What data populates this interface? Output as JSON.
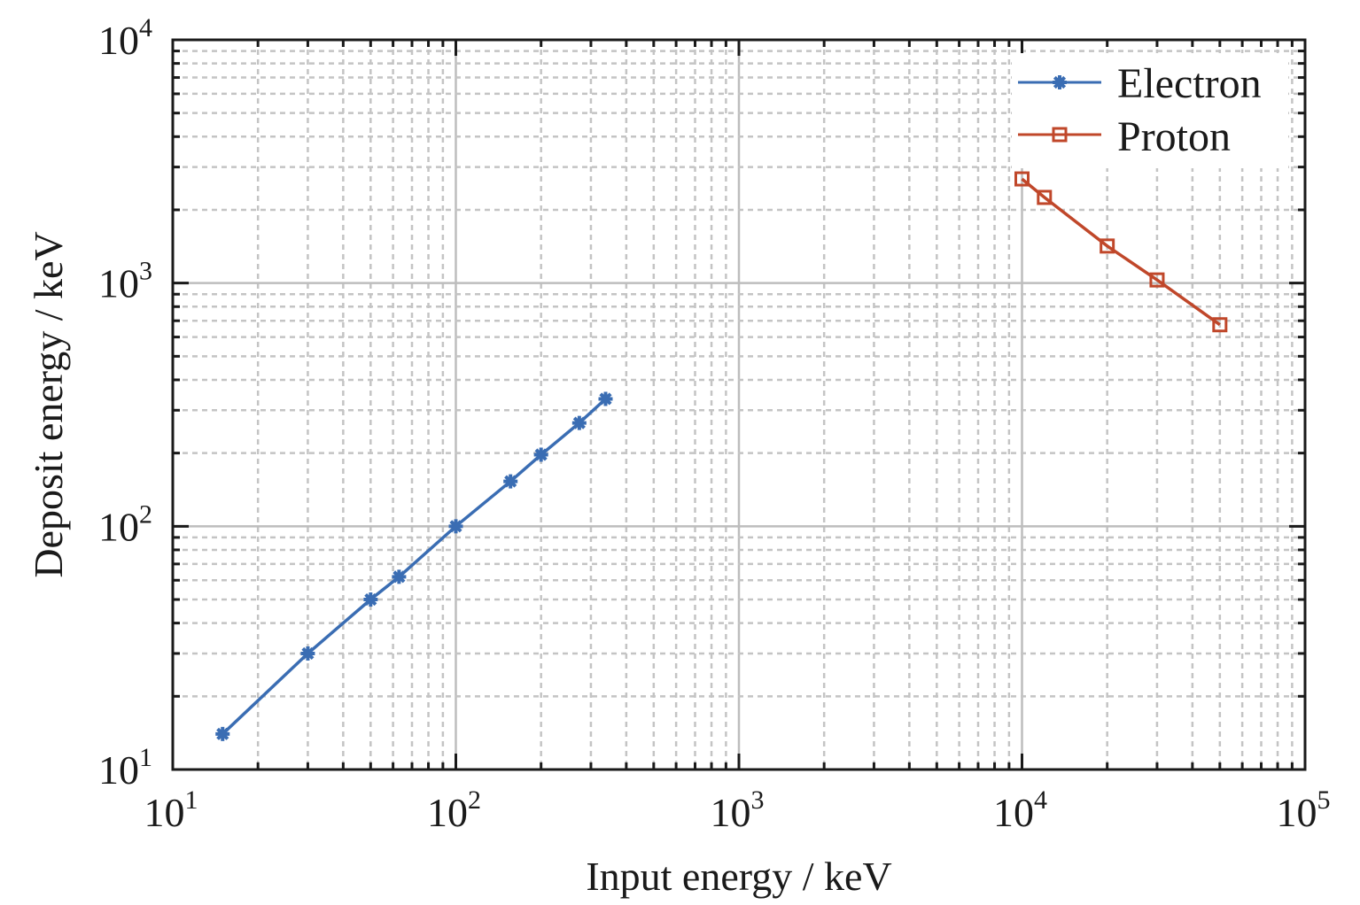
{
  "chart_data": {
    "type": "line",
    "title": "",
    "xlabel": "Input energy / keV",
    "ylabel": "Deposit energy / keV",
    "xscale": "log",
    "yscale": "log",
    "xlim": [
      10,
      100000
    ],
    "ylim": [
      10,
      10000
    ],
    "grid": true,
    "legend_position": "top-right",
    "x_ticks": [
      {
        "value": 10,
        "base": "10",
        "exp": "1"
      },
      {
        "value": 100,
        "base": "10",
        "exp": "2"
      },
      {
        "value": 1000,
        "base": "10",
        "exp": "3"
      },
      {
        "value": 10000,
        "base": "10",
        "exp": "4"
      },
      {
        "value": 100000,
        "base": "10",
        "exp": "5"
      }
    ],
    "y_ticks": [
      {
        "value": 10,
        "base": "10",
        "exp": "1"
      },
      {
        "value": 100,
        "base": "10",
        "exp": "2"
      },
      {
        "value": 1000,
        "base": "10",
        "exp": "3"
      },
      {
        "value": 10000,
        "base": "10",
        "exp": "4"
      }
    ],
    "series": [
      {
        "name": "Electron",
        "color": "#3a6db3",
        "marker": "asterisk",
        "x": [
          15,
          30,
          50,
          63,
          100,
          156,
          200,
          273,
          338
        ],
        "y": [
          14,
          30,
          50,
          62,
          100,
          153,
          197,
          266,
          334
        ]
      },
      {
        "name": "Proton",
        "color": "#c0472a",
        "marker": "square-open",
        "x": [
          10000,
          12000,
          20000,
          30000,
          50000
        ],
        "y": [
          2680,
          2250,
          1420,
          1030,
          674
        ]
      }
    ]
  }
}
